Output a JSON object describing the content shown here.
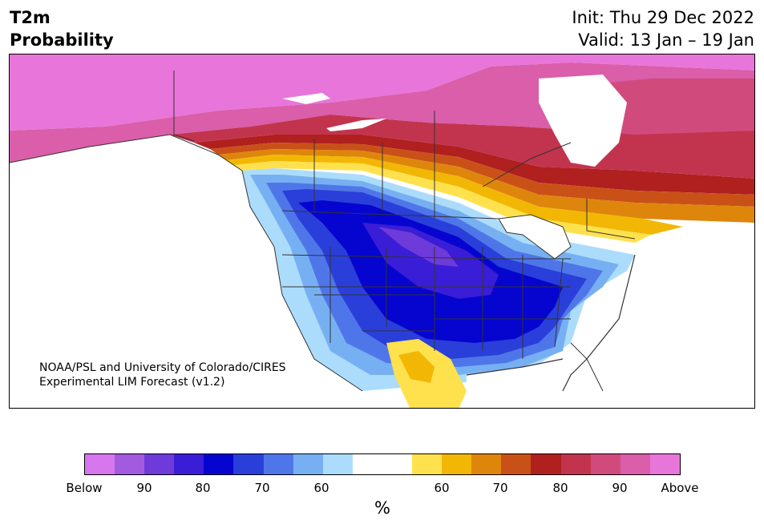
{
  "title": {
    "left_line1": "T2m",
    "left_line2": "Probability",
    "init": "Init: Thu 29 Dec 2022",
    "valid": "Valid: 13 Jan – 19 Jan"
  },
  "credit": {
    "line1": "NOAA/PSL and University of Colorado/CIRES",
    "line2": "Experimental LIM Forecast (v1.2)"
  },
  "colorbar": {
    "colors": [
      "#d677ee",
      "#a25ae0",
      "#6e3ad9",
      "#3a1dd6",
      "#0505cf",
      "#2a3fd9",
      "#4f76e9",
      "#77b0f2",
      "#acdcfb",
      "#ffffff",
      "#ffffff",
      "#ffe14d",
      "#f2b705",
      "#de860c",
      "#c95117",
      "#b0201f",
      "#c2344e",
      "#d04b7c",
      "#da5ea9",
      "#e875da"
    ],
    "tick_labels": [
      "Below",
      "90",
      "80",
      "70",
      "60",
      "60",
      "70",
      "80",
      "90",
      "Above"
    ],
    "unit": "%"
  },
  "map": {
    "shading": {
      "above_strong": "#e875da",
      "above_90": "#da5ea9",
      "above_85": "#d04b7c",
      "above_80": "#c2344e",
      "above_75": "#b0201f",
      "above_70": "#c95117",
      "above_65": "#de860c",
      "above_60": "#f2b705",
      "above_55": "#ffe14d",
      "below_55": "#acdcfb",
      "below_60": "#77b0f2",
      "below_65": "#4f76e9",
      "below_70": "#2a3fd9",
      "below_75": "#0505cf",
      "below_80": "#3a1dd6",
      "below_85": "#6e3ad9",
      "boundary": "#333333"
    }
  }
}
